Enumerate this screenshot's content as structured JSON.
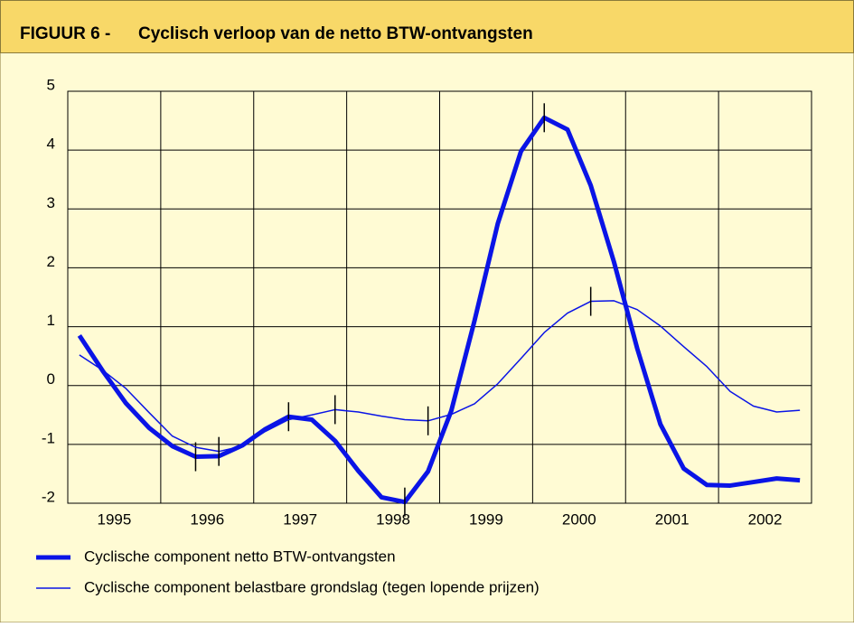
{
  "chart_data": {
    "type": "line",
    "label": "FIGUUR 6 -",
    "title": "Cyclisch verloop van de netto BTW-ontvangsten",
    "x": [
      1995.125,
      1995.375,
      1995.625,
      1995.875,
      1996.125,
      1996.375,
      1996.625,
      1996.875,
      1997.125,
      1997.375,
      1997.625,
      1997.875,
      1998.125,
      1998.375,
      1998.625,
      1998.875,
      1999.125,
      1999.375,
      1999.625,
      1999.875,
      2000.125,
      2000.375,
      2000.625,
      2000.875,
      2001.125,
      2001.375,
      2001.625,
      2001.875,
      2002.125,
      2002.375,
      2002.625,
      2002.875
    ],
    "xlim": [
      1995,
      2003
    ],
    "xticks": [
      {
        "value": 1995.5,
        "label": "1995"
      },
      {
        "value": 1996.5,
        "label": "1996"
      },
      {
        "value": 1997.5,
        "label": "1997"
      },
      {
        "value": 1998.5,
        "label": "1998"
      },
      {
        "value": 1999.5,
        "label": "1999"
      },
      {
        "value": 2000.5,
        "label": "2000"
      },
      {
        "value": 2001.5,
        "label": "2001"
      },
      {
        "value": 2002.5,
        "label": "2002"
      }
    ],
    "ylim": [
      -2,
      5
    ],
    "yticks": [
      -2,
      -1,
      0,
      1,
      2,
      3,
      4,
      5
    ],
    "grid": true,
    "series": [
      {
        "name": "Cyclische component netto BTW-ontvangsten",
        "color": "#0a14e6",
        "width": 5,
        "values": [
          0.85,
          0.25,
          -0.3,
          -0.72,
          -1.03,
          -1.21,
          -1.2,
          -1.02,
          -0.74,
          -0.53,
          -0.58,
          -0.94,
          -1.45,
          -1.9,
          -1.98,
          -1.46,
          -0.43,
          1.1,
          2.75,
          3.98,
          4.55,
          4.35,
          3.4,
          2.1,
          0.63,
          -0.66,
          -1.41,
          -1.69,
          -1.7,
          -1.64,
          -1.58,
          -1.61
        ],
        "turning_points": [
          5,
          9,
          14,
          20
        ]
      },
      {
        "name": "Cyclische component belastbare grondslag (tegen lopende prijzen)",
        "color": "#0a14e6",
        "width": 1.5,
        "values": [
          0.52,
          0.26,
          -0.05,
          -0.46,
          -0.86,
          -1.05,
          -1.12,
          -1.03,
          -0.78,
          -0.58,
          -0.5,
          -0.41,
          -0.45,
          -0.52,
          -0.58,
          -0.6,
          -0.49,
          -0.31,
          0.03,
          0.46,
          0.9,
          1.23,
          1.43,
          1.44,
          1.29,
          1.01,
          0.66,
          0.32,
          -0.1,
          -0.35,
          -0.45,
          -0.42
        ],
        "turning_points": [
          6,
          11,
          15,
          22
        ]
      }
    ]
  }
}
